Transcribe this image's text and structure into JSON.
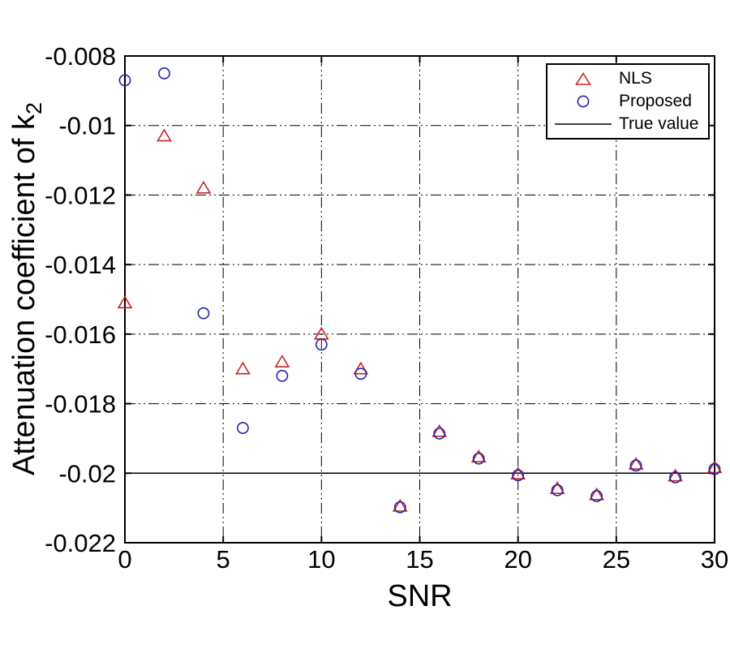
{
  "figure": {
    "background": "#ffffff",
    "axis_color": "#000000"
  },
  "chart_data": {
    "type": "scatter",
    "title": "",
    "xlabel": "SNR",
    "ylabel": "Attenuation coefficient of k",
    "ylabel_subscript": "2",
    "xlim": [
      0,
      30
    ],
    "ylim": [
      -0.022,
      -0.008
    ],
    "x_ticks": [
      0,
      5,
      10,
      15,
      20,
      25,
      30
    ],
    "x_tick_labels": [
      "0",
      "5",
      "10",
      "15",
      "20",
      "25",
      "30"
    ],
    "y_ticks": [
      -0.008,
      -0.01,
      -0.012,
      -0.014,
      -0.016,
      -0.018,
      -0.02,
      -0.022
    ],
    "y_tick_labels": [
      "-0.008",
      "-0.01",
      "-0.012",
      "-0.014",
      "-0.016",
      "-0.018",
      "-0.02",
      "-0.022"
    ],
    "grid": true,
    "grid_style": "dash-dot",
    "legend_position": "top-right",
    "x": [
      0,
      2,
      4,
      6,
      8,
      10,
      12,
      14,
      16,
      18,
      20,
      22,
      24,
      26,
      28,
      30
    ],
    "series": [
      {
        "name": "NLS",
        "marker": "triangle",
        "color": "#cc2222",
        "values": [
          -0.0151,
          -0.0103,
          -0.0118,
          -0.017,
          -0.0168,
          -0.016,
          -0.017,
          -0.02095,
          -0.0188,
          -0.01953,
          -0.02002,
          -0.02044,
          -0.02062,
          -0.01974,
          -0.02008,
          -0.01984
        ]
      },
      {
        "name": "Proposed",
        "marker": "circle",
        "color": "#2222aa",
        "values": [
          -0.0087,
          -0.0085,
          -0.0154,
          -0.0187,
          -0.0172,
          -0.0163,
          -0.01714,
          -0.02098,
          -0.01886,
          -0.01958,
          -0.02006,
          -0.02049,
          -0.02066,
          -0.01978,
          -0.02012,
          -0.01988
        ]
      },
      {
        "name": "True value",
        "marker": "line",
        "color": "#000000",
        "value": -0.02
      }
    ]
  }
}
